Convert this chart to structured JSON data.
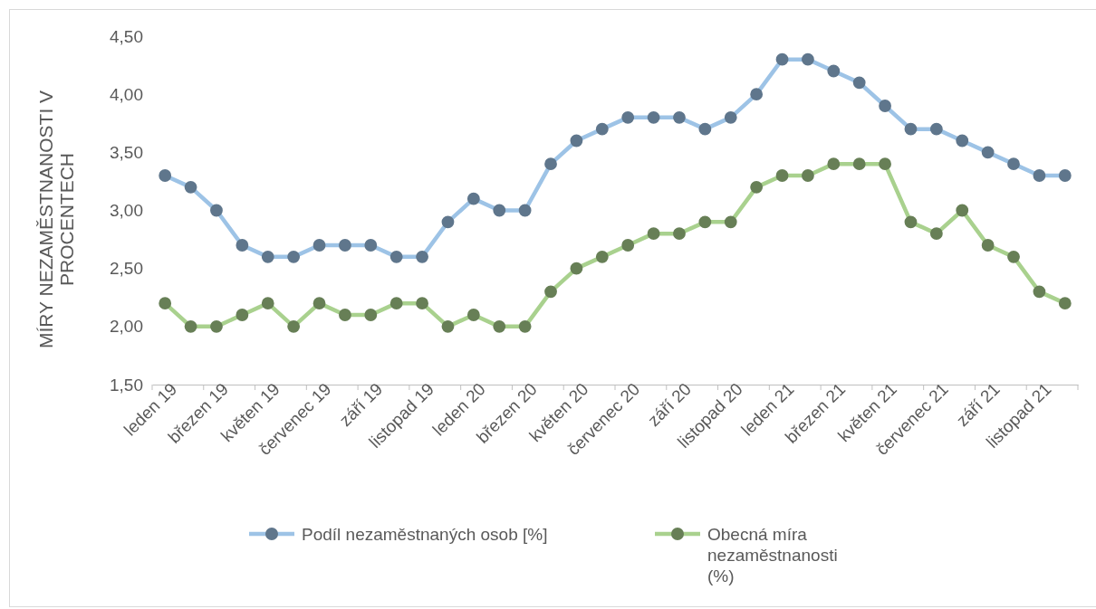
{
  "chart_data": {
    "type": "line",
    "ylabel": "MÍRY NEZAMĚSTNANOSTI V PROCENTECH",
    "categories": [
      "leden 19",
      null,
      "březen 19",
      null,
      "květen 19",
      null,
      "červenec 19",
      null,
      "září 19",
      null,
      "listopad 19",
      null,
      "leden 20",
      null,
      "březen 20",
      null,
      "květen 20",
      null,
      "červenec 20",
      null,
      "září 20",
      null,
      "listopad 20",
      null,
      "leden 21",
      null,
      "březen 21",
      null,
      "květen 21",
      null,
      "červenec 21",
      null,
      "září 21",
      null,
      "listopad 21",
      null
    ],
    "series": [
      {
        "name": "Podíl nezaměstnaných osob [%]",
        "color": "#9dc3e6",
        "values": [
          3.3,
          3.2,
          3.0,
          2.7,
          2.6,
          2.6,
          2.7,
          2.7,
          2.7,
          2.6,
          2.6,
          2.9,
          3.1,
          3.0,
          3.0,
          3.4,
          3.6,
          3.7,
          3.8,
          3.8,
          3.8,
          3.7,
          3.8,
          4.0,
          4.3,
          4.3,
          4.2,
          4.1,
          3.9,
          3.7,
          3.7,
          3.6,
          3.5,
          3.4,
          3.3,
          3.3
        ]
      },
      {
        "name": "Obecná míra nezaměstnanosti (%)",
        "color": "#a9d18e",
        "values": [
          2.2,
          2.0,
          2.0,
          2.1,
          2.2,
          2.0,
          2.2,
          2.1,
          2.1,
          2.2,
          2.2,
          2.0,
          2.1,
          2.0,
          2.0,
          2.3,
          2.5,
          2.6,
          2.7,
          2.8,
          2.8,
          2.9,
          2.9,
          3.2,
          3.3,
          3.3,
          3.4,
          3.4,
          3.4,
          2.9,
          2.8,
          3.0,
          2.7,
          2.6,
          2.3,
          2.2
        ]
      }
    ],
    "ylim": [
      1.5,
      4.5
    ],
    "yticks": [
      {
        "value": 1.5,
        "label": "1,50"
      },
      {
        "value": 2,
        "label": "2,00"
      },
      {
        "value": 2.5,
        "label": "2,50"
      },
      {
        "value": 3,
        "label": "3,00"
      },
      {
        "value": 3.5,
        "label": "3,50"
      },
      {
        "value": 4,
        "label": "4,00"
      },
      {
        "value": 4.5,
        "label": "4,50"
      }
    ],
    "grid": false,
    "legend": "bottom",
    "marker": "circle",
    "line_style": "solid"
  }
}
